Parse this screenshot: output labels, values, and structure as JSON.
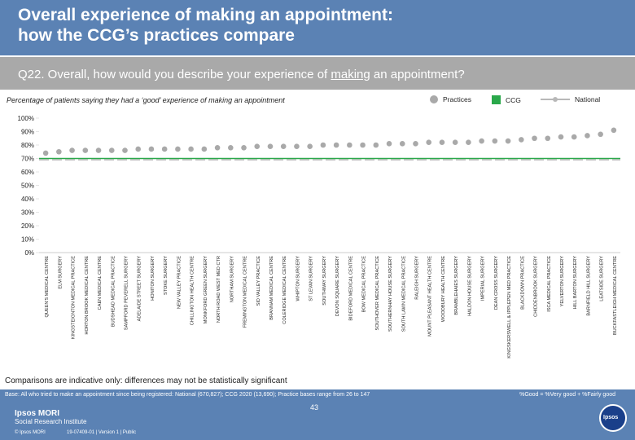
{
  "header": {
    "title_line1": "Overall experience of making an appointment:",
    "title_line2": "how the CCG’s practices compare",
    "question_prefix": "Q22. Overall, how would you describe your experience of ",
    "question_underlined": "making",
    "question_suffix": " an appointment?"
  },
  "subtitle": "Percentage of patients saying they had a ‘good’ experience of making an appointment",
  "legend": {
    "practices": "Practices",
    "ccg": "CCG",
    "national": "National"
  },
  "colors": {
    "title_bar": "#5b82b4",
    "question_bar": "#a9a9a9",
    "practice_marker": "#a9a9a9",
    "ccg_bar": "#2aa84a",
    "national_line": "#b8b8b8"
  },
  "chart_data": {
    "type": "scatter",
    "title": "Percentage of patients saying they had a ‘good’ experience of making an appointment",
    "ylim": [
      0,
      100
    ],
    "yticks": [
      0,
      10,
      20,
      30,
      40,
      50,
      60,
      70,
      80,
      90,
      100
    ],
    "ytick_labels": [
      "0%",
      "10%",
      "20%",
      "30%",
      "40%",
      "50%",
      "60%",
      "70%",
      "80%",
      "90%",
      "100%"
    ],
    "ccg_value": 70,
    "national_value": 69,
    "categories": [
      "QUEEN'S MEDICAL CENTRE",
      "ELM SURGERY",
      "KINGSTEIGNTON MEDICAL PRACTICE",
      "HORTON BROOK MEDICAL CENTRE",
      "CAEN MEDICAL CENTRE",
      "BUDSHEAD MEDICAL PRACTICE",
      "SAMPFORD PEVERELL SURGERY",
      "ADELAIDE STREET SURGERY",
      "HONITON SURGERY",
      "STOKE SURGERY",
      "NEW VALLEY PRACTICE",
      "CHILLINGTON HEALTH CENTRE",
      "MONKFORD GREEN SURGERY",
      "NORTH ROAD WEST MED CTR",
      "NORTHAM SURGERY",
      "FREMINGTON MEDICAL CENTRE",
      "SID VALLEY PRACTICE",
      "BRANNAM MEDICAL CENTRE",
      "COLERIDGE MEDICAL CENTRE",
      "WHIPTON SURGERY",
      "ST LEVAN SURGERY",
      "SOUTHWAY SURGERY",
      "DEVON SQUARE SURGERY",
      "BIDEFORD MEDICAL CENTRE",
      "BOW MEDICAL PRACTICE",
      "SOUTHOVER MEDICAL PRACTICE",
      "SOUTHERNHAY HOUSE SURGERY",
      "SOUTH LAWN MEDICAL PRACTICE",
      "RALEIGH SURGERY",
      "MOUNT PLEASANT HEALTH CENTRE",
      "WOODBURY HEALTH CENTRE",
      "BRAMBLEHAIES SURGERY",
      "HALDON HOUSE SURGERY",
      "IMPERIAL SURGERY",
      "DEAN CROSS SURGERY",
      "KINGSKERSWELL & IPPLEPEN MED PRACTICE",
      "BLACKDOWN PRACTICE",
      "CHIDDENBROOK SURGERY",
      "ISCA MEDICAL PRACTICE",
      "YELVERTON SURGERY",
      "HILL BARTON SURGERY",
      "BARNFIELD HILL SURGERY",
      "LEATSIDE SURGERY",
      "BUCKFASTLEIGH MEDICAL CENTRE"
    ],
    "values": [
      74,
      75,
      76,
      76,
      76,
      76,
      76,
      77,
      77,
      77,
      77,
      77,
      77,
      78,
      78,
      78,
      79,
      79,
      79,
      79,
      79,
      80,
      80,
      80,
      80,
      80,
      81,
      81,
      81,
      82,
      82,
      82,
      82,
      83,
      83,
      83,
      84,
      85,
      85,
      86,
      86,
      87,
      88,
      91
    ]
  },
  "caveat": "Comparisons are indicative only: differences may not be statistically significant",
  "footer": {
    "base": "Base: All who tried to make an appointment since being registered: National (670,827); CCG 2020 (13,690); Practice bases range from 26 to 147",
    "definition": "%Good = %Very good + %Fairly good",
    "logo_line1": "Ipsos MORI",
    "logo_line2": "Social Research Institute",
    "copyright": "© Ipsos MORI",
    "reference": "19-07409-01 | Version 1 | Public",
    "page_number": "43",
    "ipsos_badge": "Ipsos"
  }
}
